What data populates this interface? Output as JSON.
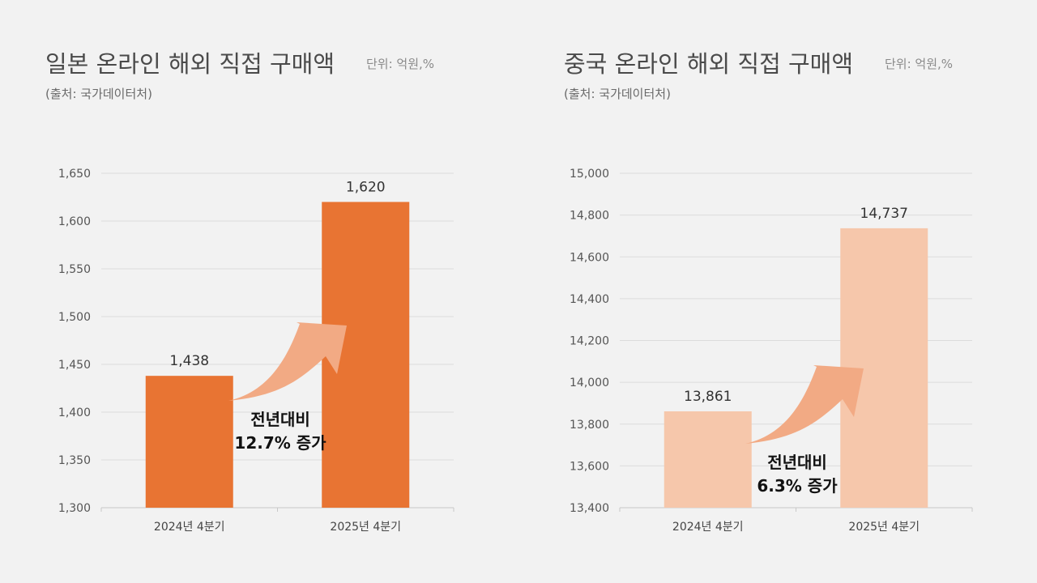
{
  "chart_data": [
    {
      "type": "bar",
      "title": "일본 온라인 해외 직접 구매액",
      "unit": "단위: 억원,%",
      "source": "(출처: 국가데이터처)",
      "categories": [
        "2024년 4분기",
        "2025년 4분기"
      ],
      "values": [
        1438,
        1620
      ],
      "value_labels": [
        "1,438",
        "1,620"
      ],
      "ylim": [
        1300,
        1650
      ],
      "yticks": [
        1300,
        1350,
        1400,
        1450,
        1500,
        1550,
        1600,
        1650
      ],
      "ytick_labels": [
        "1,300",
        "1,350",
        "1,400",
        "1,450",
        "1,500",
        "1,550",
        "1,600",
        "1,650"
      ],
      "grid": true,
      "annotation": [
        "전년대비",
        "12.7% 증가"
      ],
      "bar_color": "#e87433",
      "arrow_color": "#f2aa84"
    },
    {
      "type": "bar",
      "title": "중국 온라인 해외 직접 구매액",
      "unit": "단위: 억원,%",
      "source": "(출처: 국가데이터처)",
      "categories": [
        "2024년 4분기",
        "2025년 4분기"
      ],
      "values": [
        13861,
        14737
      ],
      "value_labels": [
        "13,861",
        "14,737"
      ],
      "ylim": [
        13400,
        15000
      ],
      "yticks": [
        13400,
        13600,
        13800,
        14000,
        14200,
        14400,
        14600,
        14800,
        15000
      ],
      "ytick_labels": [
        "13,400",
        "13,600",
        "13,800",
        "14,000",
        "14,200",
        "14,400",
        "14,600",
        "14,800",
        "15,000"
      ],
      "grid": true,
      "annotation": [
        "전년대비",
        "6.3% 증가"
      ],
      "bar_color": "#f6c7ab",
      "arrow_color": "#f2aa84"
    }
  ]
}
